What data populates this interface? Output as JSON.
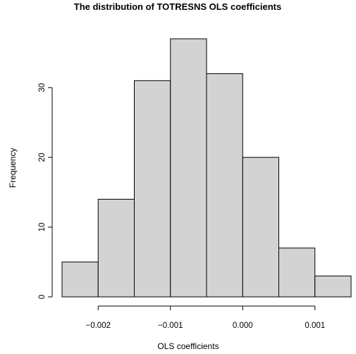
{
  "chart_data": {
    "type": "bar",
    "title": "The distribution of TOTRESNS OLS coefficients",
    "xlabel": "OLS coefficients",
    "ylabel": "Frequency",
    "bins": [
      {
        "start": -0.0025,
        "end": -0.002,
        "count": 5
      },
      {
        "start": -0.002,
        "end": -0.0015,
        "count": 14
      },
      {
        "start": -0.0015,
        "end": -0.001,
        "count": 31
      },
      {
        "start": -0.001,
        "end": -0.0005,
        "count": 37
      },
      {
        "start": -0.0005,
        "end": 0.0,
        "count": 32
      },
      {
        "start": 0.0,
        "end": 0.0005,
        "count": 20
      },
      {
        "start": 0.0005,
        "end": 0.001,
        "count": 7
      },
      {
        "start": 0.001,
        "end": 0.0015,
        "count": 3
      }
    ],
    "xlim": [
      -0.0025,
      0.0015
    ],
    "ylim": [
      0,
      37
    ],
    "x_ticks": [
      {
        "value": -0.002,
        "label": "−0.002"
      },
      {
        "value": -0.001,
        "label": "−0.001"
      },
      {
        "value": 0.0,
        "label": "0.000"
      },
      {
        "value": 0.001,
        "label": "0.001"
      }
    ],
    "y_ticks": [
      {
        "value": 0,
        "label": "0"
      },
      {
        "value": 10,
        "label": "10"
      },
      {
        "value": 20,
        "label": "20"
      },
      {
        "value": 30,
        "label": "30"
      }
    ],
    "grid": false,
    "bar_fill": "#d3d3d3",
    "bar_stroke": "#000000"
  }
}
